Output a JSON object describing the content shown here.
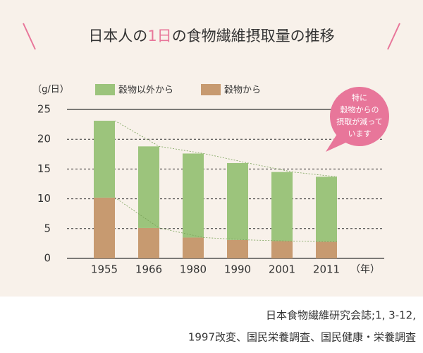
{
  "chart_data": {
    "type": "stacked-bar",
    "title": [
      "日本人の",
      "1日",
      "の食物繊維摂取量の推移"
    ],
    "title_highlight_color": "#e8769a",
    "y_label": "（g/日）",
    "x_label": "（年）",
    "categories": [
      "1955",
      "1966",
      "1980",
      "1990",
      "2001",
      "2011"
    ],
    "series": [
      {
        "name": "穀物以外から",
        "color": "#9cc47c",
        "values": [
          12.9,
          13.7,
          14.1,
          12.9,
          11.6,
          10.9
        ]
      },
      {
        "name": "穀物から",
        "color": "#c79a70",
        "values": [
          10.2,
          5.1,
          3.5,
          3.1,
          2.9,
          2.8
        ]
      }
    ],
    "ylim": [
      0,
      25
    ],
    "yticks": [
      0,
      5,
      10,
      15,
      20,
      25
    ],
    "grid": true,
    "callout": [
      "特に",
      "穀物からの",
      "摂取が減って",
      "います"
    ],
    "callout_color": "#e8769a",
    "source": [
      "日本食物繊維研究会誌;1, 3-12,",
      "1997改変、国民栄養調査、国民健康・栄養調査"
    ]
  }
}
